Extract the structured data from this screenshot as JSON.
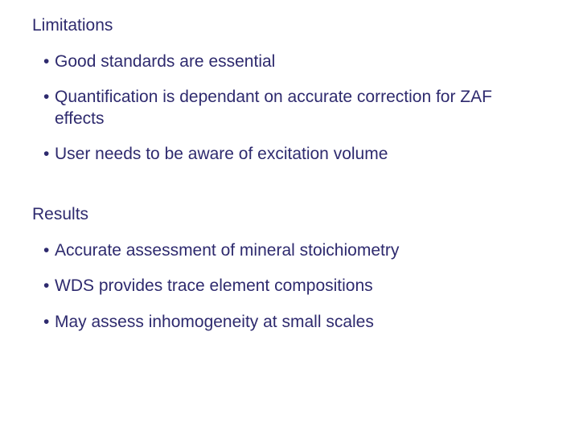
{
  "text_color": "#2e2a6e",
  "background_color": "#ffffff",
  "font_family": "Arial, Helvetica, sans-serif",
  "heading_fontsize": 21,
  "bullet_fontsize": 21,
  "sections": [
    {
      "heading": "Limitations",
      "bullets": [
        "Good standards are essential",
        "Quantification is dependant on accurate correction for ZAF effects",
        "User needs to be aware of excitation volume"
      ]
    },
    {
      "heading": "Results",
      "bullets": [
        "Accurate assessment of mineral stoichiometry",
        "WDS provides trace element compositions",
        "May assess inhomogeneity at small scales"
      ]
    }
  ]
}
